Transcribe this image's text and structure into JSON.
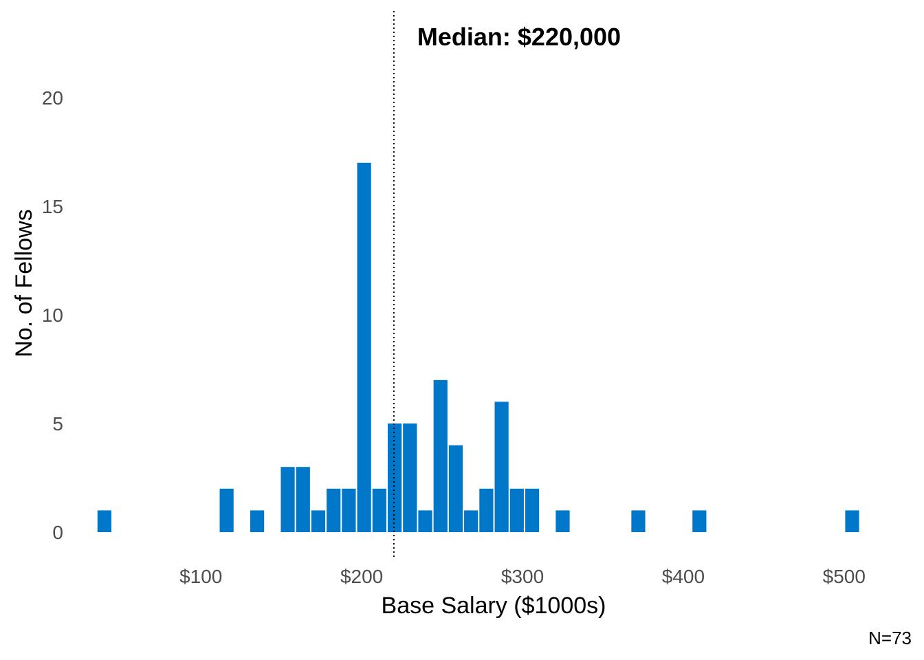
{
  "chart_data": {
    "type": "bar",
    "title": "",
    "xlabel": "Base Salary ($1000s)",
    "ylabel": "No. of Fellows",
    "median_label": "Median: $220,000",
    "median_value": 220,
    "caption": "N=73",
    "bar_color": "#0077C8",
    "median_line_color": "#000000",
    "bin_width": 9.5,
    "x_ticks": [
      {
        "value": 100,
        "label": "$100"
      },
      {
        "value": 200,
        "label": "$200"
      },
      {
        "value": 300,
        "label": "$300"
      },
      {
        "value": 400,
        "label": "$400"
      },
      {
        "value": 500,
        "label": "$500"
      }
    ],
    "y_ticks": [
      {
        "value": 0,
        "label": "0"
      },
      {
        "value": 5,
        "label": "5"
      },
      {
        "value": 10,
        "label": "10"
      },
      {
        "value": 15,
        "label": "15"
      },
      {
        "value": 20,
        "label": "20"
      }
    ],
    "xlim": [
      20,
      520
    ],
    "ylim": [
      0,
      20
    ],
    "bins": [
      {
        "x": 40,
        "count": 1
      },
      {
        "x": 116,
        "count": 2
      },
      {
        "x": 135,
        "count": 1
      },
      {
        "x": 154,
        "count": 3
      },
      {
        "x": 163.5,
        "count": 3
      },
      {
        "x": 173,
        "count": 1
      },
      {
        "x": 182.5,
        "count": 2
      },
      {
        "x": 192,
        "count": 2
      },
      {
        "x": 201.5,
        "count": 17
      },
      {
        "x": 211,
        "count": 2
      },
      {
        "x": 220.5,
        "count": 5
      },
      {
        "x": 230,
        "count": 5
      },
      {
        "x": 239.5,
        "count": 1
      },
      {
        "x": 249,
        "count": 7
      },
      {
        "x": 258.5,
        "count": 4
      },
      {
        "x": 268,
        "count": 1
      },
      {
        "x": 277.5,
        "count": 2
      },
      {
        "x": 287,
        "count": 6
      },
      {
        "x": 296.5,
        "count": 2
      },
      {
        "x": 306,
        "count": 2
      },
      {
        "x": 325,
        "count": 1
      },
      {
        "x": 372,
        "count": 1
      },
      {
        "x": 410,
        "count": 1
      },
      {
        "x": 505,
        "count": 1
      }
    ]
  }
}
